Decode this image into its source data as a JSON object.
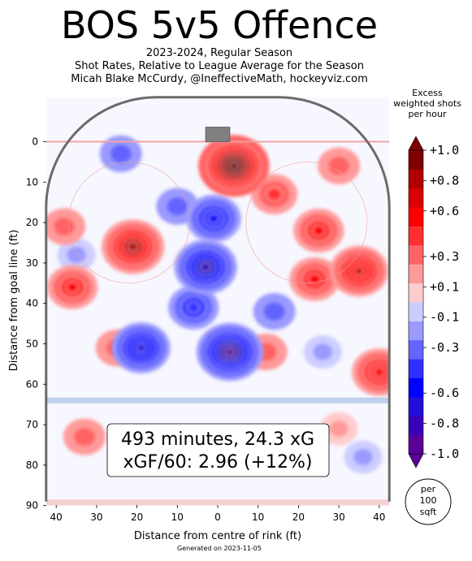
{
  "header": {
    "title": "BOS 5v5 Offence",
    "subtitle_1": "2023-2024, Regular Season",
    "subtitle_2": "Shot Rates, Relative to League Average for the Season",
    "subtitle_3": "Micah Blake McCurdy, @IneffectiveMath, hockeyviz.com"
  },
  "legend": {
    "title_line_1": "Excess",
    "title_line_2": "weighted shots",
    "title_line_3": "per hour",
    "colors": [
      "#5a0099",
      "#3a00b8",
      "#2010d8",
      "#0000ff",
      "#3030ff",
      "#6464ff",
      "#9a9aff",
      "#cccdff",
      "#ffcccc",
      "#ff9a9a",
      "#ff6464",
      "#ff3030",
      "#ff0000",
      "#d80000",
      "#b00000",
      "#800000"
    ],
    "tick_labels": [
      "+1.0",
      "+0.8",
      "+0.6",
      "+0.3",
      "+0.1",
      "-0.1",
      "-0.3",
      "-0.6",
      "-0.8",
      "-1.0"
    ],
    "tick_positions": [
      1.0,
      0.8,
      0.6,
      0.3,
      0.1,
      -0.1,
      -0.3,
      -0.6,
      -0.8,
      -1.0
    ],
    "per_area_line_1": "per",
    "per_area_line_2": "100",
    "per_area_line_3": "sqft"
  },
  "summary": {
    "line_1": "493 minutes, 24.3 xG",
    "line_2": "xGF/60: 2.96 (+12%)"
  },
  "footer": "Generated on 2023-11-05",
  "chart_data": {
    "type": "heatmap",
    "title": "BOS 5v5 Offence",
    "xlabel": "Distance from centre of rink (ft)",
    "ylabel": "Distance from goal line (ft)",
    "xlim": [
      -42.5,
      42.5
    ],
    "ylim": [
      90,
      -11
    ],
    "x_ticks": [
      -40,
      -30,
      -20,
      -10,
      0,
      10,
      20,
      30,
      40
    ],
    "x_tick_labels": [
      "40",
      "30",
      "20",
      "10",
      "0",
      "10",
      "20",
      "30",
      "40"
    ],
    "y_ticks": [
      0,
      10,
      20,
      30,
      40,
      50,
      60,
      70,
      80,
      90
    ],
    "y_tick_labels": [
      "0",
      "10",
      "20",
      "30",
      "40",
      "50",
      "60",
      "70",
      "80",
      "90"
    ],
    "value_range": [
      -1.0,
      1.0
    ],
    "hotspots": [
      {
        "x": 4,
        "y": 6,
        "value": 1.0
      },
      {
        "x": -21,
        "y": 26,
        "value": 0.8
      },
      {
        "x": 35,
        "y": 32,
        "value": 0.7
      },
      {
        "x": -36,
        "y": 36,
        "value": 0.5
      },
      {
        "x": 14,
        "y": 13,
        "value": 0.4
      },
      {
        "x": 25,
        "y": 22,
        "value": 0.5
      },
      {
        "x": -38,
        "y": 21,
        "value": 0.3
      },
      {
        "x": -25,
        "y": 51,
        "value": 0.3
      },
      {
        "x": 40,
        "y": 57,
        "value": 0.6
      },
      {
        "x": 12,
        "y": 52,
        "value": 0.3
      },
      {
        "x": 30,
        "y": 6,
        "value": 0.3
      },
      {
        "x": 24,
        "y": 34,
        "value": 0.5
      },
      {
        "x": -33,
        "y": 73,
        "value": 0.3
      },
      {
        "x": 30,
        "y": 71,
        "value": 0.2
      },
      {
        "x": -3,
        "y": 31,
        "value": -0.8
      },
      {
        "x": -1,
        "y": 19,
        "value": -0.6
      },
      {
        "x": 3,
        "y": 52,
        "value": -0.9
      },
      {
        "x": -19,
        "y": 51,
        "value": -0.7
      },
      {
        "x": -6,
        "y": 41,
        "value": -0.5
      },
      {
        "x": 14,
        "y": 42,
        "value": -0.3
      },
      {
        "x": -24,
        "y": 3,
        "value": -0.3
      },
      {
        "x": -10,
        "y": 16,
        "value": -0.3
      },
      {
        "x": -35,
        "y": 28,
        "value": -0.2
      },
      {
        "x": 36,
        "y": 78,
        "value": -0.2
      },
      {
        "x": 26,
        "y": 52,
        "value": -0.2
      }
    ]
  }
}
